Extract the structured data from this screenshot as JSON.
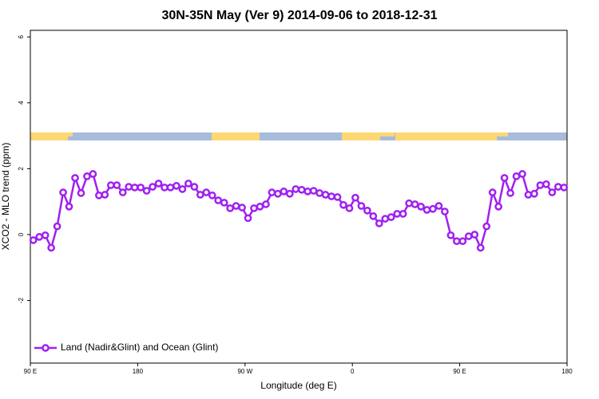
{
  "chart_data": {
    "type": "line",
    "title": "30N-35N May (Ver 9)   2014-09-06 to 2018-12-31",
    "xlabel": "Longitude (deg E)",
    "ylabel": "XCO2 - MLO trend (ppm)",
    "xlim": [
      90,
      540
    ],
    "xticks": [
      {
        "value": 90,
        "label": "90 E"
      },
      180,
      {
        "value": 270,
        "label": "90 W"
      },
      {
        "value": 360,
        "label": "0"
      },
      {
        "value": 450,
        "label": "90 E"
      },
      {
        "value": 540,
        "label": "180"
      }
    ],
    "ylim": [
      -3.9,
      6.2
    ],
    "yticks": [
      -2,
      0,
      2,
      4,
      6
    ],
    "legend": "bottom-left",
    "x": [
      92.5,
      97.5,
      102.5,
      107.5,
      112.5,
      117.5,
      122.5,
      127.5,
      132.5,
      137.5,
      142.5,
      147.5,
      152.5,
      157.5,
      162.5,
      167.5,
      172.5,
      177.5,
      182.5,
      187.5,
      192.5,
      197.5,
      202.5,
      207.5,
      212.5,
      217.5,
      222.5,
      227.5,
      232.5,
      237.5,
      242.5,
      247.5,
      252.5,
      257.5,
      262.5,
      267.5,
      272.5,
      277.5,
      282.5,
      287.5,
      292.5,
      297.5,
      302.5,
      307.5,
      312.5,
      317.5,
      322.5,
      327.5,
      332.5,
      337.5,
      342.5,
      347.5,
      352.5,
      357.5,
      362.5,
      367.5,
      372.5,
      377.5,
      382.5,
      387.5,
      392.5,
      397.5,
      402.5,
      407.5,
      412.5,
      417.5,
      422.5,
      427.5,
      432.5,
      437.5,
      442.5,
      447.5,
      452.5,
      457.5,
      462.5,
      467.5,
      472.5,
      477.5,
      482.5,
      487.5,
      492.5,
      497.5,
      502.5,
      507.5,
      512.5,
      517.5,
      522.5,
      527.5,
      532.5,
      537.5
    ],
    "series": [
      {
        "name": "Land (Nadir&Glint) and Ocean (Glint)",
        "color": "#a020f0",
        "values": [
          -0.17,
          -0.07,
          -0.02,
          -0.4,
          0.25,
          1.28,
          0.85,
          1.72,
          1.26,
          1.77,
          1.84,
          1.19,
          1.21,
          1.5,
          1.5,
          1.28,
          1.45,
          1.43,
          1.43,
          1.33,
          1.45,
          1.55,
          1.43,
          1.43,
          1.48,
          1.38,
          1.55,
          1.45,
          1.21,
          1.28,
          1.19,
          1.04,
          0.97,
          0.8,
          0.87,
          0.82,
          0.5,
          0.8,
          0.85,
          0.92,
          1.28,
          1.24,
          1.31,
          1.24,
          1.38,
          1.36,
          1.31,
          1.33,
          1.26,
          1.21,
          1.16,
          1.14,
          0.9,
          0.8,
          1.12,
          0.87,
          0.73,
          0.56,
          0.34,
          0.48,
          0.53,
          0.63,
          0.63,
          0.95,
          0.92,
          0.85,
          0.75,
          0.78,
          0.87,
          0.7,
          -0.02,
          -0.2,
          -0.2,
          -0.05,
          0,
          -0.4,
          0.25,
          1.28,
          0.85,
          1.72,
          1.26,
          1.77,
          1.84,
          1.21,
          1.24,
          1.5,
          1.53,
          1.28,
          1.45,
          1.43
        ]
      }
    ]
  }
}
